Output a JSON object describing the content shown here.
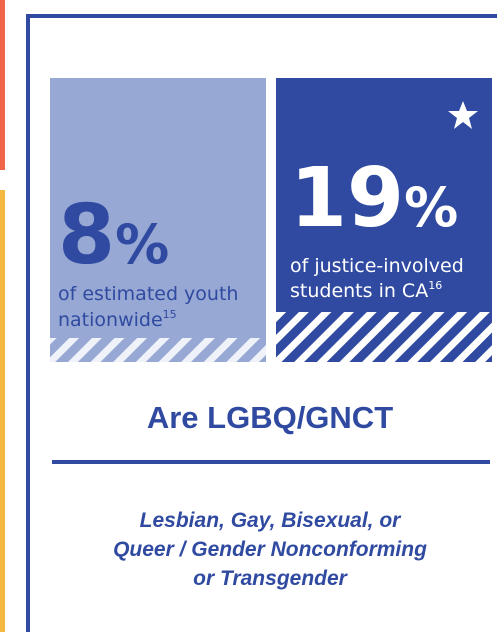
{
  "stats": [
    {
      "number": "8",
      "unit": "%",
      "caption": [
        "of estimated youth",
        "nationwide"
      ],
      "footnote": "15"
    },
    {
      "number": "19",
      "unit": "%",
      "caption": [
        "of justice-involved",
        "students in CA"
      ],
      "footnote": "16"
    }
  ],
  "headline": "Are LGBQ/GNCT",
  "definition": [
    "Lesbian, Gay, Bisexual, or",
    "Queer / Gender Nonconforming",
    "or Transgender"
  ]
}
